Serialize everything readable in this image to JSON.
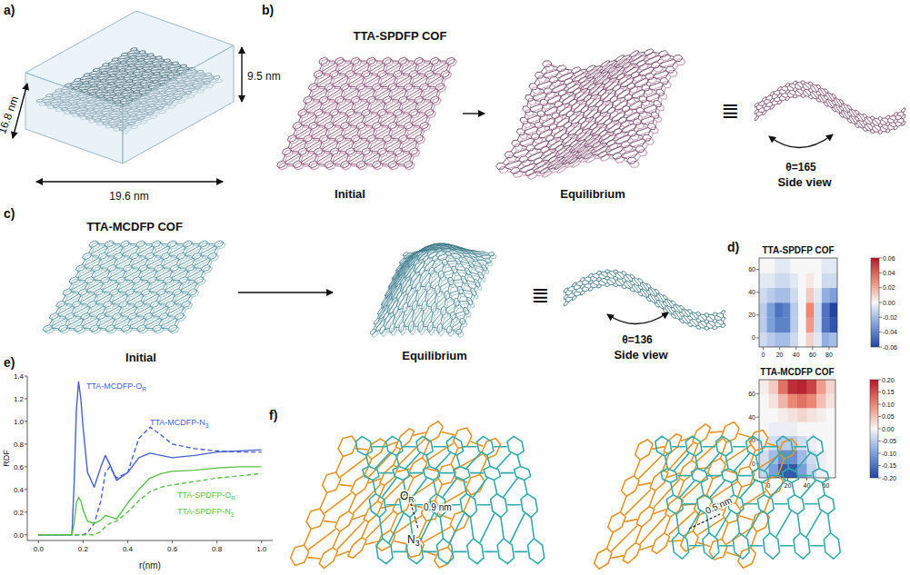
{
  "panels": {
    "a": {
      "label": "a)",
      "depth": "16.8 nm",
      "height": "9.5 nm",
      "length": "19.6 nm"
    },
    "b": {
      "label": "b)",
      "title": "TTA-SPDFP COF",
      "initial": "Initial",
      "equilibrium": "Equilibrium",
      "equiv": "≣",
      "angle": "θ=165",
      "side_view": "Side view"
    },
    "c": {
      "label": "c)",
      "title": "TTA-MCDFP COF",
      "initial": "Initial",
      "equilibrium": "Equilibrium",
      "equiv": "≣",
      "angle": "θ=136",
      "side_view": "Side view"
    },
    "d": {
      "label": "d)"
    },
    "e": {
      "label": "e)"
    },
    "f": {
      "label": "f)",
      "o_label": "OR",
      "n_label": "N3",
      "distance_left": "0.9 nm",
      "distance_right": "0.5 nm"
    }
  },
  "chart_data": [
    {
      "type": "heatmap",
      "title": "TTA-SPDFP COF",
      "xlim": [
        -5,
        90
      ],
      "ylim": [
        -8,
        70
      ],
      "xticks": [
        0,
        20,
        40,
        60,
        80
      ],
      "yticks": [
        0,
        20,
        40,
        60
      ],
      "x_edges": [
        -5,
        4.5,
        14,
        23.5,
        33,
        42.5,
        52,
        61.5,
        71,
        80.5,
        90
      ],
      "y_edges": [
        -8,
        5,
        18,
        31,
        44,
        57,
        70
      ],
      "values": [
        [
          -0.01,
          -0.015,
          -0.02,
          -0.02,
          -0.01,
          0.0,
          0.01,
          -0.005,
          -0.025,
          -0.02
        ],
        [
          -0.015,
          -0.03,
          -0.04,
          -0.04,
          -0.015,
          0.0,
          0.025,
          -0.01,
          -0.045,
          -0.055
        ],
        [
          -0.015,
          -0.03,
          -0.045,
          -0.04,
          -0.015,
          0.0,
          0.03,
          -0.01,
          -0.045,
          -0.06
        ],
        [
          -0.01,
          -0.015,
          -0.02,
          -0.02,
          -0.01,
          0.0,
          0.012,
          -0.005,
          -0.025,
          -0.03
        ],
        [
          -0.005,
          -0.005,
          -0.01,
          -0.01,
          -0.005,
          0.0,
          0.004,
          0.0,
          -0.01,
          -0.01
        ],
        [
          0.0,
          0.0,
          -0.005,
          -0.005,
          0.0,
          0.0,
          0.0,
          0.0,
          -0.005,
          -0.005
        ]
      ],
      "color_range": [
        -0.06,
        0.06
      ],
      "color_ticks": [
        0.06,
        0.04,
        0.02,
        {
          "value": 0,
          "label": "0.00"
        },
        -0.02,
        -0.04,
        -0.06
      ]
    },
    {
      "type": "heatmap",
      "title": "TTA-MCDFP COF",
      "xlim": [
        -10,
        70
      ],
      "ylim": [
        -12,
        72
      ],
      "xticks": [
        0,
        20,
        40,
        60
      ],
      "yticks": [
        0,
        20,
        40,
        60
      ],
      "x_edges": [
        -10,
        0,
        10,
        20,
        30,
        40,
        50,
        60,
        70
      ],
      "y_edges": [
        -12,
        0,
        12,
        24,
        36,
        48,
        60,
        72
      ],
      "values": [
        [
          -0.04,
          -0.1,
          -0.18,
          -0.18,
          -0.1,
          -0.04,
          -0.01,
          0.0
        ],
        [
          -0.03,
          -0.07,
          -0.12,
          -0.12,
          -0.07,
          -0.03,
          -0.01,
          0.0
        ],
        [
          -0.01,
          -0.03,
          -0.05,
          -0.05,
          -0.03,
          -0.01,
          0.0,
          0.0
        ],
        [
          0.0,
          -0.01,
          -0.01,
          -0.01,
          0.0,
          0.0,
          0.0,
          0.0
        ],
        [
          0.0,
          0.0,
          0.01,
          0.02,
          0.03,
          0.02,
          0.01,
          0.0
        ],
        [
          0.0,
          0.02,
          0.06,
          0.1,
          0.12,
          0.1,
          0.05,
          0.02
        ],
        [
          0.01,
          0.04,
          0.12,
          0.18,
          0.19,
          0.16,
          0.08,
          0.03
        ]
      ],
      "color_range": [
        -0.2,
        0.2
      ],
      "color_ticks": [
        {
          "value": 0.2,
          "label": "0.20"
        },
        0.15,
        {
          "value": 0.1,
          "label": "0.10"
        },
        0.05,
        {
          "value": 0,
          "label": "0.00"
        },
        -0.05,
        {
          "value": -0.1,
          "label": "-0.10"
        },
        -0.15,
        {
          "value": -0.2,
          "label": "-0.20"
        }
      ]
    },
    {
      "type": "line",
      "x_label": "r(nm)",
      "y_label": "RDF",
      "x": [
        0,
        0.05,
        0.1,
        0.15,
        0.16,
        0.17,
        0.18,
        0.19,
        0.2,
        0.22,
        0.25,
        0.28,
        0.3,
        0.32,
        0.35,
        0.4,
        0.45,
        0.5,
        0.55,
        0.6,
        0.7,
        0.8,
        0.9,
        1.0
      ],
      "xlim": [
        -0.05,
        1.05
      ],
      "xticks": [
        {
          "value": 0,
          "label": "0.0"
        },
        0.2,
        0.4,
        0.6,
        0.8,
        {
          "value": 1,
          "label": "1.0"
        }
      ],
      "ylim": [
        -0.05,
        1.4
      ],
      "yticks": [
        {
          "value": 0,
          "label": "0.0"
        },
        0.2,
        0.4,
        0.6,
        0.8,
        {
          "value": 1,
          "label": "1.0"
        },
        1.2,
        1.4
      ],
      "series": [
        {
          "name": "TTA-MCDFP-OR",
          "color": "#4a5fd0",
          "line_style": "solid",
          "values": [
            0,
            0,
            0,
            0,
            0.45,
            1.1,
            1.35,
            1.2,
            0.95,
            0.55,
            0.42,
            0.6,
            0.7,
            0.62,
            0.48,
            0.55,
            0.68,
            0.72,
            0.7,
            0.68,
            0.7,
            0.73,
            0.74,
            0.75
          ]
        },
        {
          "name": "TTA-MCDFP-N3",
          "color": "#4a5fd0",
          "line_style": "dashed",
          "values": [
            0,
            0,
            0,
            0,
            0,
            0,
            0,
            0,
            0,
            0.02,
            0.1,
            0.3,
            0.55,
            0.6,
            0.5,
            0.55,
            0.85,
            0.95,
            0.88,
            0.8,
            0.76,
            0.74,
            0.73,
            0.73
          ]
        },
        {
          "name": "TTA-SPDFP-OR",
          "color": "#5cbf4a",
          "line_style": "solid",
          "values": [
            0,
            0,
            0,
            0,
            0.1,
            0.28,
            0.33,
            0.3,
            0.22,
            0.12,
            0.1,
            0.13,
            0.17,
            0.16,
            0.14,
            0.28,
            0.4,
            0.5,
            0.54,
            0.56,
            0.57,
            0.59,
            0.6,
            0.6
          ]
        },
        {
          "name": "TTA-SPDFP-N3",
          "color": "#5cbf4a",
          "line_style": "dashed",
          "values": [
            0,
            0,
            0,
            0,
            0,
            0,
            0,
            0,
            0,
            0,
            0,
            0.03,
            0.07,
            0.1,
            0.12,
            0.2,
            0.3,
            0.38,
            0.42,
            0.44,
            0.47,
            0.5,
            0.52,
            0.54
          ]
        }
      ]
    }
  ]
}
